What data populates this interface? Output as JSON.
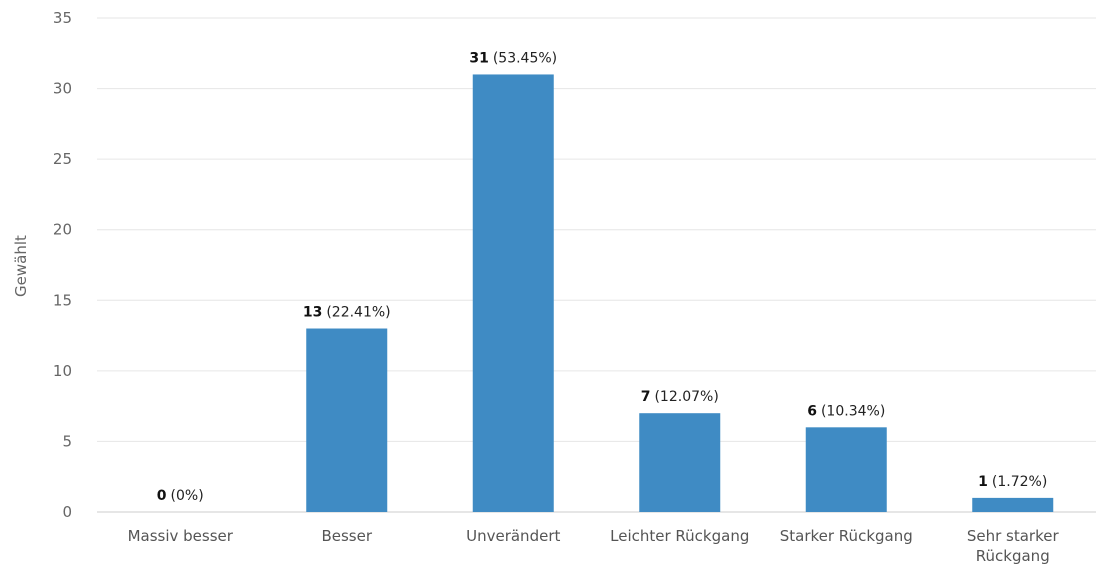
{
  "chart_data": {
    "type": "bar",
    "title": "",
    "xlabel": "",
    "ylabel": "Gewählt",
    "ylim": [
      0,
      35
    ],
    "yticks": [
      0,
      5,
      10,
      15,
      20,
      25,
      30,
      35
    ],
    "grid": true,
    "bar_color": "#3f8bc4",
    "categories": [
      [
        "Massiv besser"
      ],
      [
        "Besser"
      ],
      [
        "Unverändert"
      ],
      [
        "Leichter Rückgang"
      ],
      [
        "Starker Rückgang"
      ],
      [
        "Sehr starker",
        "Rückgang"
      ]
    ],
    "values": [
      0,
      13,
      31,
      7,
      6,
      1
    ],
    "percent_labels": [
      "(0%)",
      "(22.41%)",
      "(53.45%)",
      "(12.07%)",
      "(10.34%)",
      "(1.72%)"
    ]
  }
}
